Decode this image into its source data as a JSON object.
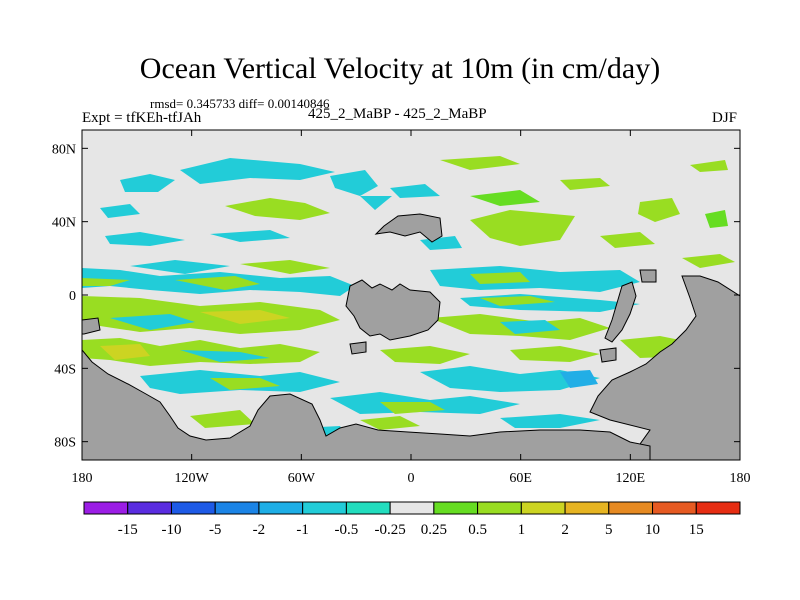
{
  "chart_data": {
    "type": "heatmap",
    "title": "Ocean Vertical Velocity at 10m (in cm/day)",
    "subtitle": "rmsd= 0.345733 diff= 0.00140846",
    "left_label": "Expt = tfKEh-tfJAh",
    "center_label": "425_2_MaBP - 425_2_MaBP",
    "right_label": "DJF",
    "x_ticks": [
      "180",
      "120W",
      "60W",
      "0",
      "60E",
      "120E",
      "180"
    ],
    "x_tick_values": [
      -180,
      -120,
      -60,
      0,
      60,
      120,
      180
    ],
    "y_ticks": [
      "80N",
      "40N",
      "0",
      "40S",
      "80S"
    ],
    "y_tick_values": [
      80,
      40,
      0,
      -40,
      -80
    ],
    "xlim": [
      -180,
      180
    ],
    "ylim": [
      -90,
      90
    ],
    "colorbar": {
      "labels": [
        "-15",
        "-10",
        "-5",
        "-2",
        "-1",
        "-0.5",
        "-0.25",
        "0.25",
        "0.5",
        "1",
        "2",
        "5",
        "10",
        "15"
      ],
      "colors": [
        "#9b1de5",
        "#5a2ce0",
        "#1e5ae6",
        "#1b84e6",
        "#1eaee6",
        "#22ccd8",
        "#22ddbe",
        "#e6e6e6",
        "#66dd22",
        "#99dd22",
        "#ccd422",
        "#e6b422",
        "#e68a22",
        "#e65a22",
        "#e62d12"
      ]
    },
    "colors": {
      "land": "#a0a0a0",
      "near_zero": "#e6e6e6"
    }
  }
}
